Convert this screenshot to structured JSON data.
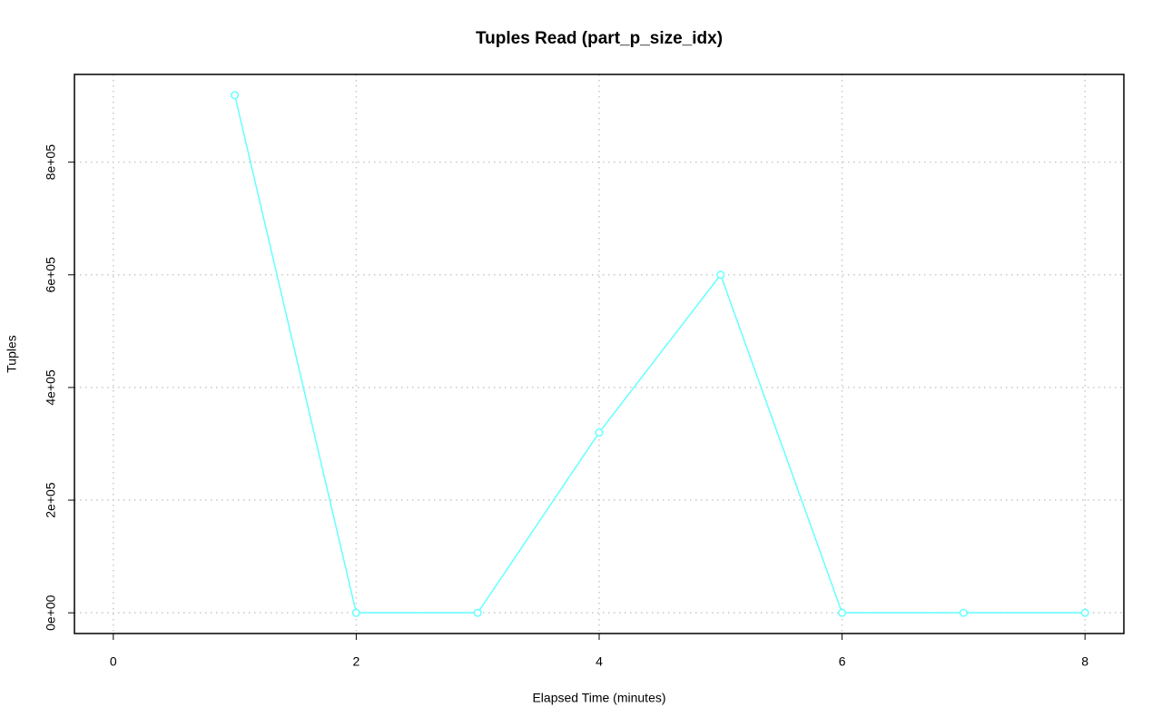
{
  "chart_data": {
    "type": "line",
    "title": "Tuples Read (part_p_size_idx)",
    "x_label": "Elapsed Time (minutes)",
    "y_label": "Tuples",
    "x": [
      1,
      2,
      3,
      4,
      5,
      6,
      7,
      8
    ],
    "series": [
      {
        "name": "Tuples",
        "color": "#66ffff",
        "values": [
          919000,
          0,
          0,
          320000,
          600000,
          0,
          0,
          0
        ]
      }
    ],
    "xlim": [
      -0.32,
      8.32
    ],
    "xticks": [
      0,
      2,
      4,
      6,
      8
    ],
    "ylim": [
      -36760,
      955760
    ],
    "yticks": [
      {
        "value": 0,
        "label": "0e+00"
      },
      {
        "value": 200000,
        "label": "2e+05"
      },
      {
        "value": 400000,
        "label": "4e+05"
      },
      {
        "value": 600000,
        "label": "6e+05"
      },
      {
        "value": 800000,
        "label": "8e+05"
      }
    ],
    "grid": true
  }
}
